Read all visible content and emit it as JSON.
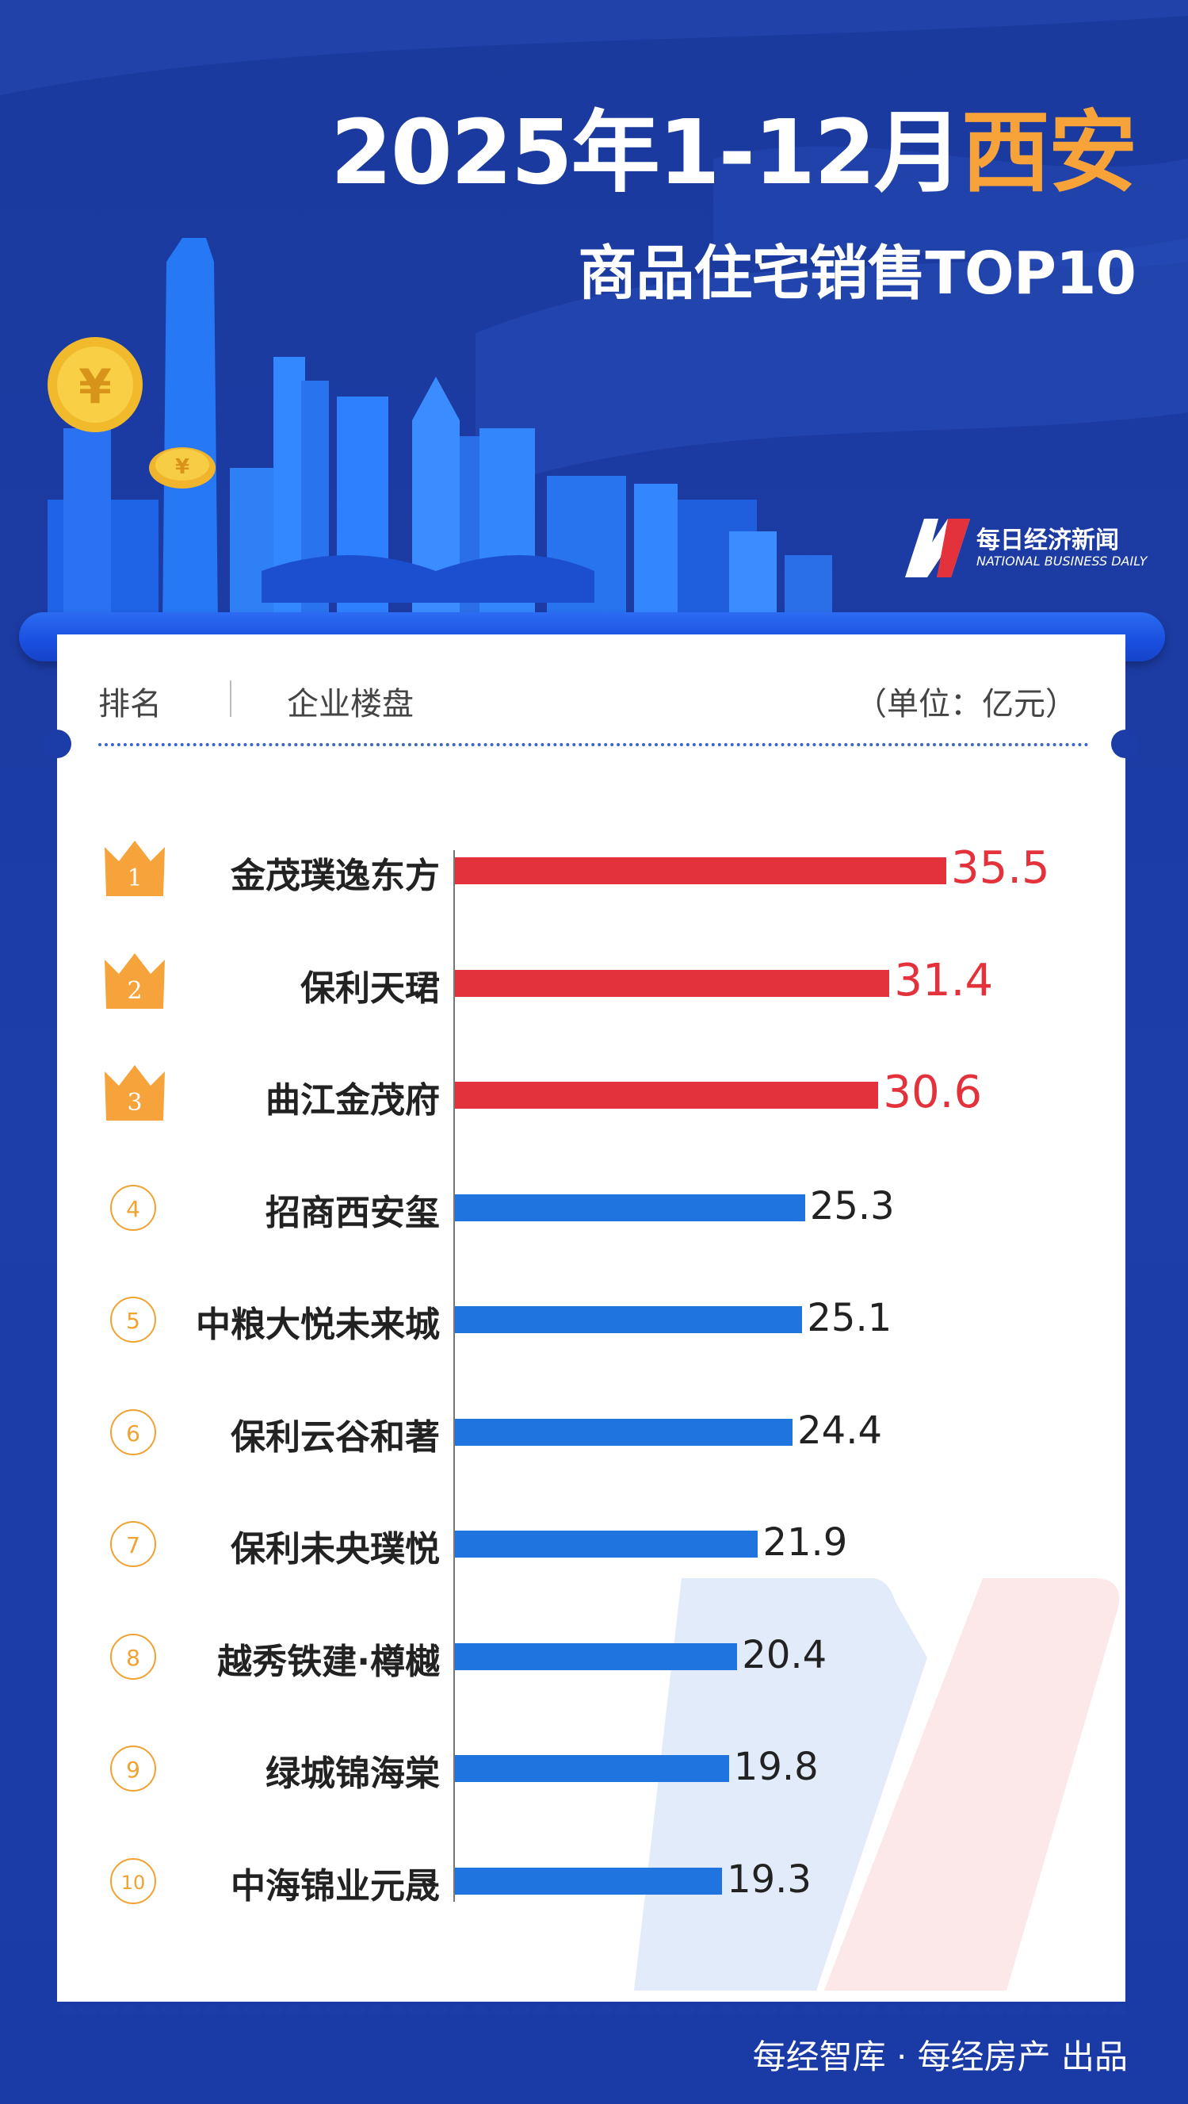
{
  "header": {
    "title_main": "2025年1-12月",
    "title_city": "西安",
    "subtitle": "商品住宅销售TOP10"
  },
  "logo": {
    "cn": "每日经济新闻",
    "en": "NATIONAL BUSINESS DAILY"
  },
  "table": {
    "col_rank": "排名",
    "col_project": "企业楼盘",
    "unit": "（单位：亿元）"
  },
  "colors": {
    "top3": "#e3323b",
    "others": "#1f74e0",
    "accent": "#f7a33a",
    "background": "#1c3ca7"
  },
  "chart_data": {
    "type": "bar",
    "orientation": "horizontal",
    "unit": "亿元",
    "categories": [
      "金茂璞逸东方",
      "保利天珺",
      "曲江金茂府",
      "招商西安玺",
      "中粮大悦未来城",
      "保利云谷和著",
      "保利未央璞悦",
      "越秀铁建·樽樾",
      "绿城锦海棠",
      "中海锦业元晟"
    ],
    "ranks": [
      "1",
      "2",
      "3",
      "4",
      "5",
      "6",
      "7",
      "8",
      "9",
      "10"
    ],
    "values": [
      35.5,
      31.4,
      30.6,
      25.3,
      25.1,
      24.4,
      21.9,
      20.4,
      19.8,
      19.3
    ],
    "value_labels": [
      "35.5",
      "31.4",
      "30.6",
      "25.3",
      "25.1",
      "24.4",
      "21.9",
      "20.4",
      "19.8",
      "19.3"
    ],
    "xlim": [
      0,
      35.5
    ],
    "grid": false,
    "legend": "none"
  },
  "footer": {
    "text": "每经智库 · 每经房产 出品"
  }
}
